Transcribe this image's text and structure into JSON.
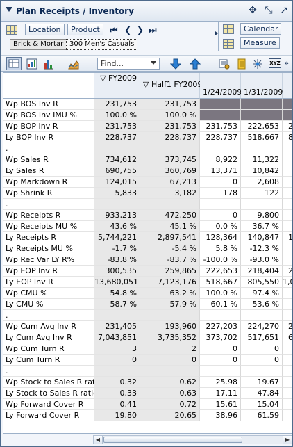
{
  "title": "Plan Receipts / Inventory",
  "toolbar": {
    "location_label": "Location",
    "product_label": "Product",
    "calendar_label": "Calendar",
    "measure_label": "Measure",
    "location_value": "Brick & Mortar",
    "product_value": "300 Men's Casuals",
    "find_placeholder": "Find..."
  },
  "columns": [
    {
      "label": "FY2009",
      "kind": "agg"
    },
    {
      "label": "Half1 FY2009",
      "kind": "agg"
    },
    {
      "label": "1/24/2009",
      "kind": "detail"
    },
    {
      "label": "1/31/2009",
      "kind": "detail"
    },
    {
      "label": "",
      "kind": "detail"
    }
  ],
  "rows": [
    {
      "label": "Wp BOS Inv R",
      "values": [
        "231,753",
        "231,753",
        "",
        "",
        ""
      ],
      "dark": true
    },
    {
      "label": "Wp BOS Inv IMU %",
      "values": [
        "100.0 %",
        "100.0 %",
        "",
        "",
        ""
      ],
      "dark": true
    },
    {
      "label": "Wp BOP Inv R",
      "values": [
        "231,753",
        "231,753",
        "231,753",
        "222,653",
        "2"
      ]
    },
    {
      "label": "Ly BOP Inv R",
      "values": [
        "228,737",
        "228,737",
        "228,737",
        "518,667",
        "8"
      ]
    },
    {
      "label": ".",
      "values": [
        "",
        "",
        "",
        "",
        ""
      ],
      "sep": true
    },
    {
      "label": "Wp Sales R",
      "values": [
        "734,612",
        "373,745",
        "8,922",
        "11,322",
        ""
      ]
    },
    {
      "label": "Ly Sales R",
      "values": [
        "690,755",
        "360,769",
        "13,371",
        "10,842",
        ""
      ]
    },
    {
      "label": "Wp Markdown R",
      "values": [
        "124,015",
        "67,213",
        "0",
        "2,608",
        ""
      ]
    },
    {
      "label": "Wp Shrink R",
      "values": [
        "5,833",
        "3,182",
        "178",
        "122",
        ""
      ]
    },
    {
      "label": ".",
      "values": [
        "",
        "",
        "",
        "",
        ""
      ],
      "sep": true
    },
    {
      "label": "Wp Receipts R",
      "values": [
        "933,213",
        "472,250",
        "0",
        "9,800",
        ""
      ]
    },
    {
      "label": "Wp Receipts MU %",
      "values": [
        "43.6 %",
        "45.1 %",
        "0.0 %",
        "36.7 %",
        ""
      ]
    },
    {
      "label": "Ly Receipts R",
      "values": [
        "5,744,221",
        "2,897,541",
        "128,364",
        "140,847",
        "1"
      ]
    },
    {
      "label": "Ly Receipts MU %",
      "values": [
        "-1.7 %",
        "-5.4 %",
        "5.8 %",
        "-12.3 %",
        ""
      ]
    },
    {
      "label": "Wp Rec Var LY R%",
      "values": [
        "-83.8 %",
        "-83.7 %",
        "-100.0 %",
        "-93.0 %",
        ""
      ]
    },
    {
      "label": "Wp EOP Inv R",
      "values": [
        "300,535",
        "259,865",
        "222,653",
        "218,404",
        "2"
      ]
    },
    {
      "label": "Ly EOP Inv R",
      "values": [
        "13,680,051",
        "7,123,176",
        "518,667",
        "805,550",
        "1,0"
      ]
    },
    {
      "label": "Wp CMU %",
      "values": [
        "54.8 %",
        "63.2 %",
        "100.0 %",
        "97.4 %",
        ""
      ]
    },
    {
      "label": "Ly CMU %",
      "values": [
        "58.7 %",
        "57.9 %",
        "60.1 %",
        "53.6 %",
        ""
      ]
    },
    {
      "label": ".",
      "values": [
        "",
        "",
        "",
        "",
        ""
      ],
      "sep": true
    },
    {
      "label": "Wp Cum Avg Inv R",
      "values": [
        "231,405",
        "193,960",
        "227,203",
        "224,270",
        "2"
      ]
    },
    {
      "label": "Ly Cum Avg Inv R",
      "values": [
        "7,043,851",
        "3,735,352",
        "373,702",
        "517,651",
        "6"
      ]
    },
    {
      "label": "Wp Cum Turn R",
      "values": [
        "3",
        "2",
        "0",
        "0",
        ""
      ]
    },
    {
      "label": "Ly Cum Turn R",
      "values": [
        "0",
        "0",
        "0",
        "0",
        ""
      ]
    },
    {
      "label": ".",
      "values": [
        "",
        "",
        "",
        "",
        ""
      ],
      "sep": true
    },
    {
      "label": "Wp Stock to Sales R ratio",
      "values": [
        "0.32",
        "0.62",
        "25.98",
        "19.67",
        ""
      ]
    },
    {
      "label": "Ly Stock to Sales R ratio",
      "values": [
        "0.33",
        "0.63",
        "17.11",
        "47.84",
        ""
      ]
    },
    {
      "label": "Wp Forward Cover R",
      "values": [
        "0.41",
        "0.72",
        "15.61",
        "15.04",
        ""
      ]
    },
    {
      "label": "Ly Forward Cover R",
      "values": [
        "19.80",
        "20.65",
        "38.96",
        "61.59",
        ""
      ]
    }
  ],
  "colors": {
    "title_text": "#0d2a55",
    "agg_cell_bg": "#e8e8e8",
    "disabled_cell_bg": "#7b7680",
    "header_bg": "#e9eef5",
    "border": "#9db1c9"
  },
  "icons": [
    "collapse-chevron-icon",
    "move-icon",
    "resize-icon",
    "maximize-icon",
    "dimension-grid-icon",
    "first-icon",
    "previous-icon",
    "next-icon",
    "last-icon",
    "table-view-icon",
    "chart-table-icon",
    "bar-chart-icon",
    "area-chart-icon",
    "find-next-icon",
    "find-previous-icon",
    "settings-icon",
    "note-icon",
    "star-icon",
    "export-icon"
  ]
}
